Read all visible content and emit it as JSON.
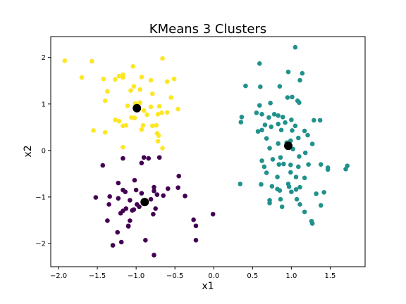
{
  "chart_data": {
    "type": "scatter",
    "title": "KMeans 3 Clusters",
    "xlabel": "x1",
    "ylabel": "x2",
    "xlim": [
      -2.1,
      1.95
    ],
    "ylim": [
      -2.5,
      2.45
    ],
    "xticks": [
      -2.0,
      -1.5,
      -1.0,
      -0.5,
      0.0,
      0.5,
      1.0,
      1.5
    ],
    "xtick_labels": [
      "−2.0",
      "−1.5",
      "−1.0",
      "−0.5",
      "0.0",
      "0.5",
      "1.0",
      "1.5"
    ],
    "yticks": [
      -2,
      -1,
      0,
      1,
      2
    ],
    "ytick_labels": [
      "−2",
      "−1",
      "0",
      "1",
      "2"
    ],
    "grid": false,
    "series": [
      {
        "color": "#fde725",
        "points": [
          [
            -1.92,
            1.93
          ],
          [
            -1.7,
            1.57
          ],
          [
            -1.57,
            1.92
          ],
          [
            -1.42,
            1.54
          ],
          [
            -1.27,
            1.53
          ],
          [
            -1.22,
            1.6
          ],
          [
            -1.17,
            1.63
          ],
          [
            -1.17,
            1.57
          ],
          [
            -1.04,
            1.81
          ],
          [
            -0.93,
            1.58
          ],
          [
            -0.81,
            1.51
          ],
          [
            -0.66,
            1.98
          ],
          [
            -0.6,
            1.48
          ],
          [
            -0.51,
            1.54
          ],
          [
            -1.37,
            1.27
          ],
          [
            -1.07,
            1.29
          ],
          [
            -1.03,
            1.38
          ],
          [
            -0.95,
            1.31
          ],
          [
            -0.79,
            1.22
          ],
          [
            -0.55,
            1.14
          ],
          [
            -0.46,
            0.89
          ],
          [
            -1.4,
            1.07
          ],
          [
            -1.11,
            0.96
          ],
          [
            -1.01,
            1.01
          ],
          [
            -0.95,
            1.03
          ],
          [
            -0.9,
            0.86
          ],
          [
            -0.86,
            0.77
          ],
          [
            -0.81,
            0.94
          ],
          [
            -0.7,
            0.95
          ],
          [
            -0.67,
            0.81
          ],
          [
            -0.72,
            0.78
          ],
          [
            -0.6,
            0.82
          ],
          [
            -1.27,
            0.66
          ],
          [
            -1.22,
            0.63
          ],
          [
            -1.17,
            0.53
          ],
          [
            -1.13,
            0.54
          ],
          [
            -1.06,
            0.71
          ],
          [
            -1.02,
            0.7
          ],
          [
            -0.91,
            0.54
          ],
          [
            -0.79,
            0.53
          ],
          [
            -0.74,
            0.54
          ],
          [
            -0.73,
            0.37
          ],
          [
            -0.71,
            0.32
          ],
          [
            -0.72,
            0.2
          ],
          [
            -0.66,
            0.05
          ],
          [
            -1.55,
            0.43
          ],
          [
            -1.4,
            0.39
          ],
          [
            -1.17,
            0.07
          ],
          [
            -0.93,
            0.45
          ]
        ]
      },
      {
        "color": "#21918c",
        "points": [
          [
            1.05,
            2.22
          ],
          [
            0.59,
            1.87
          ],
          [
            0.96,
            1.69
          ],
          [
            1.14,
            1.66
          ],
          [
            1.11,
            1.51
          ],
          [
            0.41,
            1.39
          ],
          [
            0.6,
            1.37
          ],
          [
            0.85,
            1.38
          ],
          [
            0.95,
            1.14
          ],
          [
            1.01,
            1.15
          ],
          [
            1.08,
            1.07
          ],
          [
            1.1,
            1.03
          ],
          [
            0.73,
            1.02
          ],
          [
            0.59,
            0.97
          ],
          [
            0.55,
            0.81
          ],
          [
            0.62,
            0.78
          ],
          [
            0.71,
            0.71
          ],
          [
            0.78,
            0.78
          ],
          [
            0.83,
            0.75
          ],
          [
            0.89,
            0.72
          ],
          [
            1.0,
            0.66
          ],
          [
            0.92,
            0.6
          ],
          [
            0.36,
            0.72
          ],
          [
            0.35,
            0.61
          ],
          [
            0.66,
            0.55
          ],
          [
            0.74,
            0.51
          ],
          [
            0.83,
            0.57
          ],
          [
            0.87,
            0.44
          ],
          [
            0.62,
            0.44
          ],
          [
            0.57,
            0.41
          ],
          [
            1.01,
            0.43
          ],
          [
            1.05,
            0.53
          ],
          [
            1.17,
            0.42
          ],
          [
            1.21,
            0.33
          ],
          [
            1.29,
            0.65
          ],
          [
            1.37,
            0.65
          ],
          [
            1.27,
            0.14
          ],
          [
            1.09,
            0.27
          ],
          [
            0.99,
            0.21
          ],
          [
            0.94,
            0.17
          ],
          [
            0.83,
            0.15
          ],
          [
            0.68,
            0.26
          ],
          [
            0.72,
            0.05
          ],
          [
            1.02,
            0.03
          ],
          [
            1.18,
            -0.05
          ],
          [
            0.62,
            -0.22
          ],
          [
            0.76,
            -0.19
          ],
          [
            0.86,
            -0.15
          ],
          [
            1.1,
            -0.13
          ],
          [
            0.65,
            -0.35
          ],
          [
            0.68,
            -0.48
          ],
          [
            0.84,
            -0.3
          ],
          [
            0.9,
            -0.29
          ],
          [
            0.99,
            -0.31
          ],
          [
            1.09,
            -0.35
          ],
          [
            1.22,
            -0.3
          ],
          [
            1.38,
            -0.3
          ],
          [
            1.47,
            -0.37
          ],
          [
            1.47,
            -0.41
          ],
          [
            1.72,
            -0.33
          ],
          [
            1.7,
            -0.4
          ],
          [
            0.82,
            -0.57
          ],
          [
            0.99,
            -0.47
          ],
          [
            1.06,
            -0.57
          ],
          [
            1.11,
            -0.79
          ],
          [
            1.17,
            -0.59
          ],
          [
            0.61,
            -0.73
          ],
          [
            0.75,
            -0.77
          ],
          [
            0.82,
            -0.83
          ],
          [
            0.85,
            -0.86
          ],
          [
            0.96,
            -0.72
          ],
          [
            0.97,
            -0.78
          ],
          [
            1.0,
            -0.89
          ],
          [
            1.06,
            -0.84
          ],
          [
            1.32,
            -0.93
          ],
          [
            1.42,
            -0.9
          ],
          [
            0.34,
            -0.72
          ],
          [
            0.72,
            -1.07
          ],
          [
            0.72,
            -1.13
          ],
          [
            0.86,
            -1.05
          ],
          [
            0.88,
            -1.21
          ],
          [
            1.07,
            -1.05
          ],
          [
            1.11,
            -1.16
          ],
          [
            1.38,
            -1.18
          ],
          [
            1.17,
            -1.32
          ],
          [
            1.26,
            -1.52
          ],
          [
            1.27,
            -1.57
          ]
        ]
      },
      {
        "color": "#440154",
        "points": [
          [
            -1.43,
            -0.32
          ],
          [
            -1.17,
            -0.17
          ],
          [
            -0.9,
            -0.15
          ],
          [
            -0.84,
            -0.17
          ],
          [
            -0.93,
            -0.27
          ],
          [
            -0.7,
            -0.15
          ],
          [
            -1.23,
            -0.7
          ],
          [
            -1.02,
            -0.64
          ],
          [
            -1.17,
            -0.85
          ],
          [
            -1.14,
            -0.89
          ],
          [
            -1.0,
            -0.85
          ],
          [
            -0.93,
            -0.92
          ],
          [
            -0.77,
            -0.79
          ],
          [
            -0.77,
            -0.87
          ],
          [
            -0.73,
            -0.95
          ],
          [
            -0.65,
            -0.97
          ],
          [
            -0.59,
            -0.82
          ],
          [
            -0.46,
            -0.8
          ],
          [
            -0.45,
            -0.55
          ],
          [
            -0.37,
            -0.98
          ],
          [
            -1.52,
            -1.01
          ],
          [
            -1.34,
            -0.99
          ],
          [
            -1.23,
            -1.03
          ],
          [
            -1.08,
            -1.07
          ],
          [
            -0.99,
            -1.16
          ],
          [
            -0.96,
            -1.21
          ],
          [
            -1.35,
            -1.16
          ],
          [
            -1.2,
            -1.35
          ],
          [
            -1.13,
            -1.25
          ],
          [
            -1.03,
            -1.27
          ],
          [
            -1.05,
            -1.29
          ],
          [
            -0.75,
            -1.25
          ],
          [
            -1.17,
            -1.3
          ],
          [
            -0.81,
            -1.05
          ],
          [
            -0.78,
            -1.37
          ],
          [
            -1.37,
            -1.51
          ],
          [
            -1.08,
            -1.51
          ],
          [
            -1.1,
            -1.62
          ],
          [
            -1.24,
            -1.76
          ],
          [
            -0.26,
            -1.49
          ],
          [
            -0.23,
            -1.62
          ],
          [
            -0.01,
            -1.37
          ],
          [
            -1.3,
            -2.04
          ],
          [
            -1.19,
            -1.97
          ],
          [
            -0.88,
            -1.93
          ],
          [
            -0.23,
            -1.93
          ],
          [
            -0.77,
            -2.25
          ],
          [
            -1.1,
            -1.63
          ]
        ]
      }
    ],
    "centroids": {
      "color": "#000000",
      "points": [
        [
          -0.99,
          0.91
        ],
        [
          0.96,
          0.1
        ],
        [
          -0.89,
          -1.11
        ]
      ]
    }
  }
}
